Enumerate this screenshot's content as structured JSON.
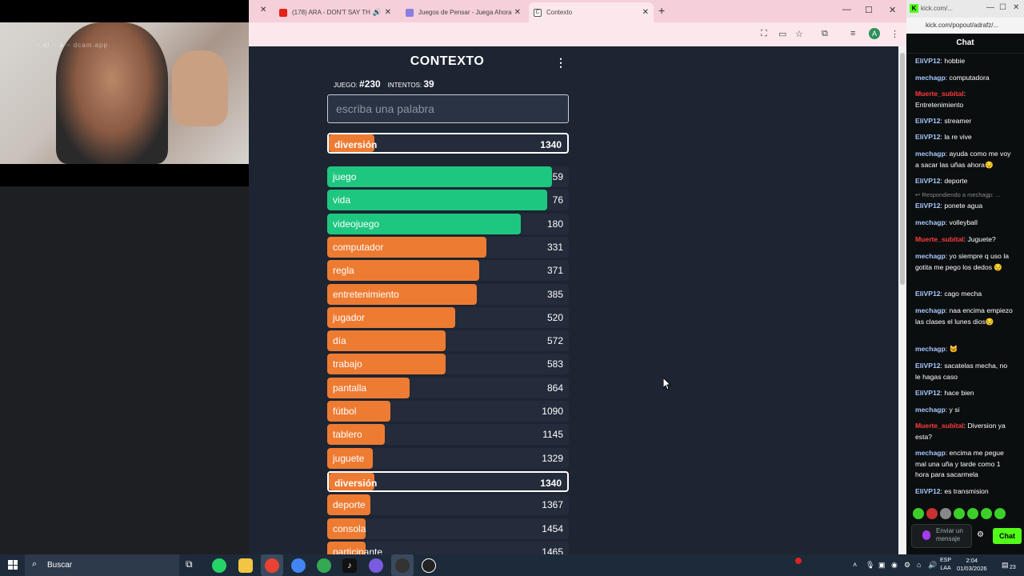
{
  "colors": {
    "green": "#1ec77f",
    "orange": "#ee7b32",
    "page_bg": "#1d2432",
    "kick_green": "#53fc18"
  },
  "webcam": {
    "overlay_text": "~ el ~ a ~ dcam.app"
  },
  "browser": {
    "tabs": [
      {
        "label": "(178) ARA - DON'T SAY TH",
        "icon": "youtube-icon"
      },
      {
        "label": "Juegos de Pensar - Juega Ahora",
        "icon": "gamepad-icon"
      },
      {
        "label": "Contexto",
        "icon": "contexto-icon"
      }
    ],
    "new_tab": "+",
    "avatar": "A"
  },
  "game": {
    "title": "CONTEXTO",
    "game_label": "JUEGO:",
    "game_number": "#230",
    "attempts_label": "INTENTOS:",
    "attempts": "39",
    "input_placeholder": "escriba una palabra",
    "current_guess": {
      "word": "diversión",
      "rank": 1340
    },
    "guesses": [
      {
        "word": "juego",
        "rank": 59,
        "color": "green",
        "fill": 0.93
      },
      {
        "word": "vida",
        "rank": 76,
        "color": "green",
        "fill": 0.91
      },
      {
        "word": "videojuego",
        "rank": 180,
        "color": "green",
        "fill": 0.8
      },
      {
        "word": "computador",
        "rank": 331,
        "color": "orange",
        "fill": 0.66
      },
      {
        "word": "regla",
        "rank": 371,
        "color": "orange",
        "fill": 0.63
      },
      {
        "word": "entretenimiento",
        "rank": 385,
        "color": "orange",
        "fill": 0.62
      },
      {
        "word": "jugador",
        "rank": 520,
        "color": "orange",
        "fill": 0.53
      },
      {
        "word": "día",
        "rank": 572,
        "color": "orange",
        "fill": 0.49
      },
      {
        "word": "trabajo",
        "rank": 583,
        "color": "orange",
        "fill": 0.49
      },
      {
        "word": "pantalla",
        "rank": 864,
        "color": "orange",
        "fill": 0.34
      },
      {
        "word": "fútbol",
        "rank": 1090,
        "color": "orange",
        "fill": 0.26
      },
      {
        "word": "tablero",
        "rank": 1145,
        "color": "orange",
        "fill": 0.24
      },
      {
        "word": "juguete",
        "rank": 1329,
        "color": "orange",
        "fill": 0.19
      },
      {
        "word": "diversión",
        "rank": 1340,
        "color": "orange",
        "fill": 0.19,
        "current": true
      },
      {
        "word": "deporte",
        "rank": 1367,
        "color": "orange",
        "fill": 0.18
      },
      {
        "word": "consola",
        "rank": 1454,
        "color": "orange",
        "fill": 0.16
      },
      {
        "word": "participante",
        "rank": 1465,
        "color": "orange",
        "fill": 0.16
      }
    ]
  },
  "kick": {
    "url": "kick.com/popout/adrafz/...",
    "tab_title": "kick.com/...",
    "chat_title": "Chat",
    "messages": [
      {
        "user": "EliVP12",
        "color": "#a8c8ff",
        "text": "hobbie"
      },
      {
        "user": "mechagp",
        "color": "#a8c8ff",
        "text": "computadora"
      },
      {
        "user": "Muerte_subital",
        "color": "#ff3b3b",
        "text": "Entretenimiento"
      },
      {
        "user": "EliVP12",
        "color": "#a8c8ff",
        "text": "streamer"
      },
      {
        "user": "EliVP12",
        "color": "#a8c8ff",
        "text": "la re vive"
      },
      {
        "user": "mechagp",
        "color": "#a8c8ff",
        "text": "ayuda como me voy a sacar las uñas ahora😔"
      },
      {
        "user": "EliVP12",
        "color": "#a8c8ff",
        "text": "deporte"
      },
      {
        "reply": "↩ Respondiendo a mechagp: ..."
      },
      {
        "user": "EliVP12",
        "color": "#a8c8ff",
        "text": "ponete agua"
      },
      {
        "user": "mechagp",
        "color": "#a8c8ff",
        "text": "volleyball"
      },
      {
        "user": "Muerte_subital",
        "color": "#ff3b3b",
        "text": "Juguete?"
      },
      {
        "user": "mechagp",
        "color": "#a8c8ff",
        "text": "yo siempre q uso la gotita me pego los dedos 😔"
      },
      {
        "user": "EliVP12",
        "color": "#a8c8ff",
        "text": "cago mecha"
      },
      {
        "user": "mechagp",
        "color": "#a8c8ff",
        "text": "naa encima empiezo las clases el lunes dios😔"
      },
      {
        "user": "mechagp",
        "color": "#a8c8ff",
        "text": "🐱"
      },
      {
        "user": "EliVP12",
        "color": "#a8c8ff",
        "text": "sacatelas mecha, no le hagas caso"
      },
      {
        "user": "EliVP12",
        "color": "#a8c8ff",
        "text": "hace bien"
      },
      {
        "user": "mechagp",
        "color": "#a8c8ff",
        "text": "y si"
      },
      {
        "user": "Muerte_subital",
        "color": "#ff3b3b",
        "text": "Diversion ya esta?"
      },
      {
        "user": "mechagp",
        "color": "#a8c8ff",
        "text": "encima me pegue mal una uña y tarde como 1 hora para sacarmela"
      },
      {
        "user": "EliVP12",
        "color": "#a8c8ff",
        "text": "es transmision"
      }
    ],
    "input_placeholder": "Enviar un mensaje",
    "send_label": "Chat"
  },
  "taskbar": {
    "search_label": "Buscar",
    "lang_top": "ESP",
    "lang_bottom": "LAA",
    "time": "2:04",
    "date": "01/03/2026",
    "notif_count": "23"
  }
}
